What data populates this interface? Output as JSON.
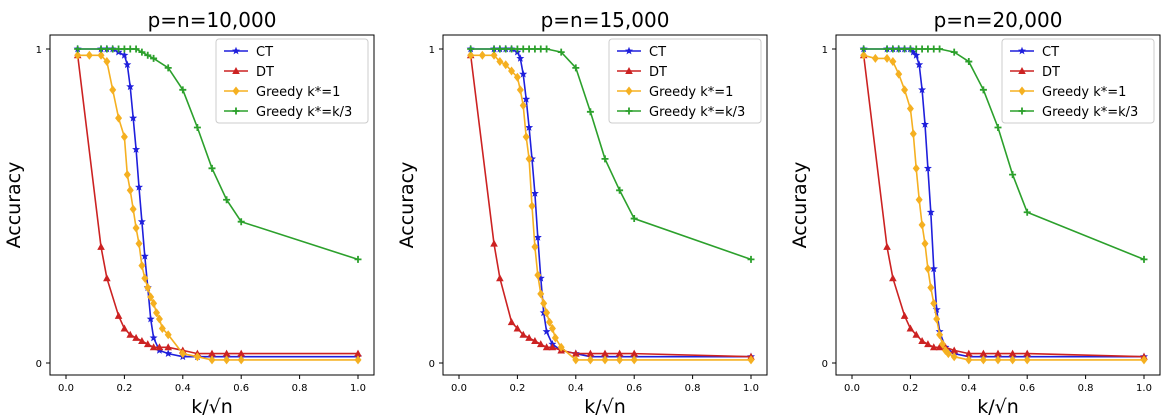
{
  "figure": {
    "legend_entries": [
      "CT",
      "DT",
      "Greedy k*=1",
      "Greedy k*=k/3"
    ],
    "colors": {
      "CT": "#1f1fdc",
      "DT": "#cc2222",
      "Greedy k*=1": "#f5b021",
      "Greedy k*=k/3": "#2ca02c"
    },
    "markers": {
      "CT": "star",
      "DT": "triangle",
      "Greedy k*=1": "diamond",
      "Greedy k*=k/3": "plus"
    }
  },
  "chart_data": [
    {
      "type": "line",
      "title": "p=n=10,000",
      "xlabel": "k/√n",
      "ylabel": "Accuracy",
      "xlim": [
        0,
        1.0
      ],
      "ylim": [
        0,
        1
      ],
      "xticks": [
        "0.0",
        "0.2",
        "0.4",
        "0.6",
        "0.8",
        "1.0"
      ],
      "yticks": [
        "0",
        "1"
      ],
      "legend_position": "top-right",
      "grid": false,
      "series": [
        {
          "name": "CT",
          "x": [
            0.04,
            0.12,
            0.14,
            0.16,
            0.18,
            0.2,
            0.21,
            0.22,
            0.23,
            0.24,
            0.25,
            0.26,
            0.27,
            0.28,
            0.29,
            0.3,
            0.32,
            0.35,
            0.4,
            0.45,
            0.5,
            0.55,
            0.6,
            1.0
          ],
          "y": [
            1,
            1,
            1,
            1,
            0.99,
            0.98,
            0.95,
            0.88,
            0.78,
            0.68,
            0.56,
            0.45,
            0.34,
            0.24,
            0.14,
            0.08,
            0.04,
            0.03,
            0.02,
            0.02,
            0.02,
            0.02,
            0.02,
            0.02
          ]
        },
        {
          "name": "DT",
          "x": [
            0.04,
            0.12,
            0.14,
            0.18,
            0.2,
            0.22,
            0.24,
            0.26,
            0.28,
            0.3,
            0.32,
            0.35,
            0.4,
            0.45,
            0.5,
            0.55,
            0.6,
            1.0
          ],
          "y": [
            0.98,
            0.37,
            0.27,
            0.15,
            0.11,
            0.09,
            0.08,
            0.07,
            0.06,
            0.05,
            0.05,
            0.05,
            0.04,
            0.03,
            0.03,
            0.03,
            0.03,
            0.03
          ]
        },
        {
          "name": "Greedy k*=1",
          "x": [
            0.04,
            0.08,
            0.12,
            0.14,
            0.16,
            0.18,
            0.2,
            0.21,
            0.22,
            0.23,
            0.24,
            0.25,
            0.26,
            0.27,
            0.28,
            0.29,
            0.3,
            0.31,
            0.32,
            0.33,
            0.35,
            0.4,
            0.45,
            0.5,
            0.55,
            0.6,
            1.0
          ],
          "y": [
            0.98,
            0.98,
            0.98,
            0.96,
            0.87,
            0.78,
            0.72,
            0.6,
            0.55,
            0.49,
            0.43,
            0.38,
            0.31,
            0.27,
            0.24,
            0.21,
            0.19,
            0.16,
            0.14,
            0.11,
            0.09,
            0.03,
            0.02,
            0.01,
            0.01,
            0.01,
            0.01
          ]
        },
        {
          "name": "Greedy k*=k/3",
          "x": [
            0.04,
            0.12,
            0.14,
            0.16,
            0.18,
            0.2,
            0.22,
            0.24,
            0.26,
            0.28,
            0.3,
            0.35,
            0.4,
            0.45,
            0.5,
            0.55,
            0.6,
            1.0
          ],
          "y": [
            1,
            1,
            1,
            1,
            1,
            1,
            1,
            1,
            0.99,
            0.98,
            0.97,
            0.94,
            0.87,
            0.75,
            0.62,
            0.52,
            0.45,
            0.33
          ]
        }
      ]
    },
    {
      "type": "line",
      "title": "p=n=15,000",
      "xlabel": "k/√n",
      "ylabel": "Accuracy",
      "xlim": [
        0,
        1.0
      ],
      "ylim": [
        0,
        1
      ],
      "xticks": [
        "0.0",
        "0.2",
        "0.4",
        "0.6",
        "0.8",
        "1.0"
      ],
      "yticks": [
        "0",
        "1"
      ],
      "legend_position": "top-right",
      "grid": false,
      "series": [
        {
          "name": "CT",
          "x": [
            0.04,
            0.12,
            0.14,
            0.16,
            0.18,
            0.2,
            0.21,
            0.22,
            0.23,
            0.24,
            0.25,
            0.26,
            0.27,
            0.28,
            0.29,
            0.3,
            0.32,
            0.35,
            0.4,
            0.45,
            0.5,
            0.55,
            0.6,
            1.0
          ],
          "y": [
            1,
            1,
            1,
            1,
            1,
            0.99,
            0.97,
            0.92,
            0.84,
            0.75,
            0.65,
            0.54,
            0.4,
            0.27,
            0.16,
            0.1,
            0.06,
            0.04,
            0.03,
            0.02,
            0.02,
            0.02,
            0.02,
            0.02
          ]
        },
        {
          "name": "DT",
          "x": [
            0.04,
            0.12,
            0.14,
            0.18,
            0.2,
            0.22,
            0.24,
            0.26,
            0.28,
            0.3,
            0.32,
            0.35,
            0.4,
            0.45,
            0.5,
            0.55,
            0.6,
            1.0
          ],
          "y": [
            0.98,
            0.38,
            0.27,
            0.13,
            0.11,
            0.09,
            0.08,
            0.07,
            0.06,
            0.05,
            0.05,
            0.04,
            0.03,
            0.03,
            0.03,
            0.03,
            0.03,
            0.02
          ]
        },
        {
          "name": "Greedy k*=1",
          "x": [
            0.04,
            0.08,
            0.12,
            0.14,
            0.16,
            0.18,
            0.2,
            0.21,
            0.22,
            0.23,
            0.24,
            0.25,
            0.26,
            0.27,
            0.28,
            0.29,
            0.3,
            0.31,
            0.32,
            0.33,
            0.35,
            0.4,
            0.45,
            0.5,
            0.55,
            0.6,
            1.0
          ],
          "y": [
            0.98,
            0.98,
            0.98,
            0.96,
            0.95,
            0.93,
            0.91,
            0.87,
            0.82,
            0.72,
            0.65,
            0.5,
            0.37,
            0.28,
            0.22,
            0.19,
            0.16,
            0.13,
            0.11,
            0.08,
            0.05,
            0.01,
            0.01,
            0.01,
            0.01,
            0.01,
            0.01
          ]
        },
        {
          "name": "Greedy k*=k/3",
          "x": [
            0.04,
            0.12,
            0.14,
            0.16,
            0.18,
            0.2,
            0.22,
            0.24,
            0.26,
            0.28,
            0.3,
            0.35,
            0.4,
            0.45,
            0.5,
            0.55,
            0.6,
            1.0
          ],
          "y": [
            1,
            1,
            1,
            1,
            1,
            1,
            1,
            1,
            1,
            1,
            1,
            0.99,
            0.94,
            0.8,
            0.65,
            0.55,
            0.46,
            0.33
          ]
        }
      ]
    },
    {
      "type": "line",
      "title": "p=n=20,000",
      "xlabel": "k/√n",
      "ylabel": "Accuracy",
      "xlim": [
        0,
        1.0
      ],
      "ylim": [
        0,
        1
      ],
      "xticks": [
        "0.0",
        "0.2",
        "0.4",
        "0.6",
        "0.8",
        "1.0"
      ],
      "yticks": [
        "0",
        "1"
      ],
      "legend_position": "top-right",
      "grid": false,
      "series": [
        {
          "name": "CT",
          "x": [
            0.04,
            0.12,
            0.14,
            0.16,
            0.18,
            0.2,
            0.21,
            0.22,
            0.23,
            0.24,
            0.25,
            0.26,
            0.27,
            0.28,
            0.29,
            0.3,
            0.32,
            0.35,
            0.4,
            0.45,
            0.5,
            0.55,
            0.6,
            1.0
          ],
          "y": [
            1,
            1,
            1,
            1,
            1,
            1,
            0.99,
            0.98,
            0.95,
            0.87,
            0.76,
            0.62,
            0.48,
            0.3,
            0.17,
            0.1,
            0.05,
            0.03,
            0.02,
            0.02,
            0.02,
            0.02,
            0.02,
            0.02
          ]
        },
        {
          "name": "DT",
          "x": [
            0.04,
            0.12,
            0.14,
            0.18,
            0.2,
            0.22,
            0.24,
            0.26,
            0.28,
            0.3,
            0.32,
            0.35,
            0.4,
            0.45,
            0.5,
            0.55,
            0.6,
            1.0
          ],
          "y": [
            0.98,
            0.37,
            0.27,
            0.15,
            0.11,
            0.09,
            0.07,
            0.06,
            0.05,
            0.05,
            0.05,
            0.04,
            0.03,
            0.03,
            0.03,
            0.03,
            0.03,
            0.02
          ]
        },
        {
          "name": "Greedy k*=1",
          "x": [
            0.04,
            0.08,
            0.12,
            0.14,
            0.16,
            0.18,
            0.2,
            0.21,
            0.22,
            0.23,
            0.24,
            0.25,
            0.26,
            0.27,
            0.28,
            0.29,
            0.3,
            0.31,
            0.32,
            0.33,
            0.35,
            0.4,
            0.45,
            0.5,
            0.55,
            0.6,
            1.0
          ],
          "y": [
            0.98,
            0.97,
            0.97,
            0.96,
            0.92,
            0.87,
            0.81,
            0.73,
            0.62,
            0.52,
            0.44,
            0.38,
            0.3,
            0.24,
            0.19,
            0.14,
            0.09,
            0.06,
            0.04,
            0.03,
            0.02,
            0.01,
            0.01,
            0.01,
            0.01,
            0.01,
            0.01
          ]
        },
        {
          "name": "Greedy k*=k/3",
          "x": [
            0.04,
            0.12,
            0.14,
            0.16,
            0.18,
            0.2,
            0.22,
            0.24,
            0.26,
            0.28,
            0.3,
            0.35,
            0.4,
            0.45,
            0.5,
            0.55,
            0.6,
            1.0
          ],
          "y": [
            1,
            1,
            1,
            1,
            1,
            1,
            1,
            1,
            1,
            1,
            1,
            0.99,
            0.96,
            0.87,
            0.75,
            0.6,
            0.48,
            0.33
          ]
        }
      ]
    }
  ]
}
